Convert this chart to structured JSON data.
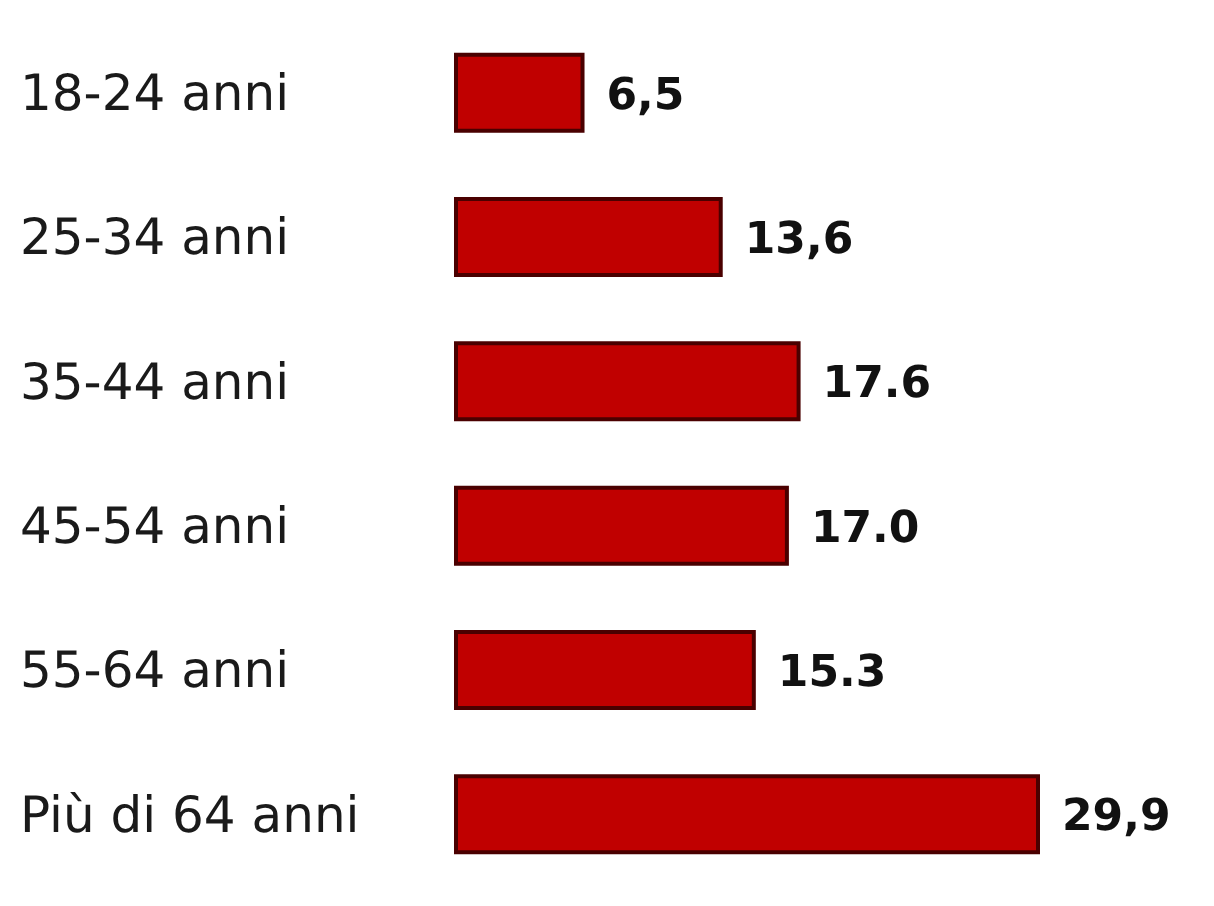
{
  "chart_data": {
    "type": "bar",
    "orientation": "horizontal",
    "categories": [
      "18-24 anni",
      "25-34 anni",
      "35-44 anni",
      "45-54 anni",
      "55-64 anni",
      "Più di 64 anni"
    ],
    "values": [
      6.5,
      13.6,
      17.6,
      17.0,
      15.3,
      29.9
    ],
    "value_labels": [
      "6,5",
      "13,6",
      "17.6",
      "17.0",
      "15.3",
      "29,9"
    ],
    "color": "#c00000",
    "grid": false,
    "legend": false
  }
}
